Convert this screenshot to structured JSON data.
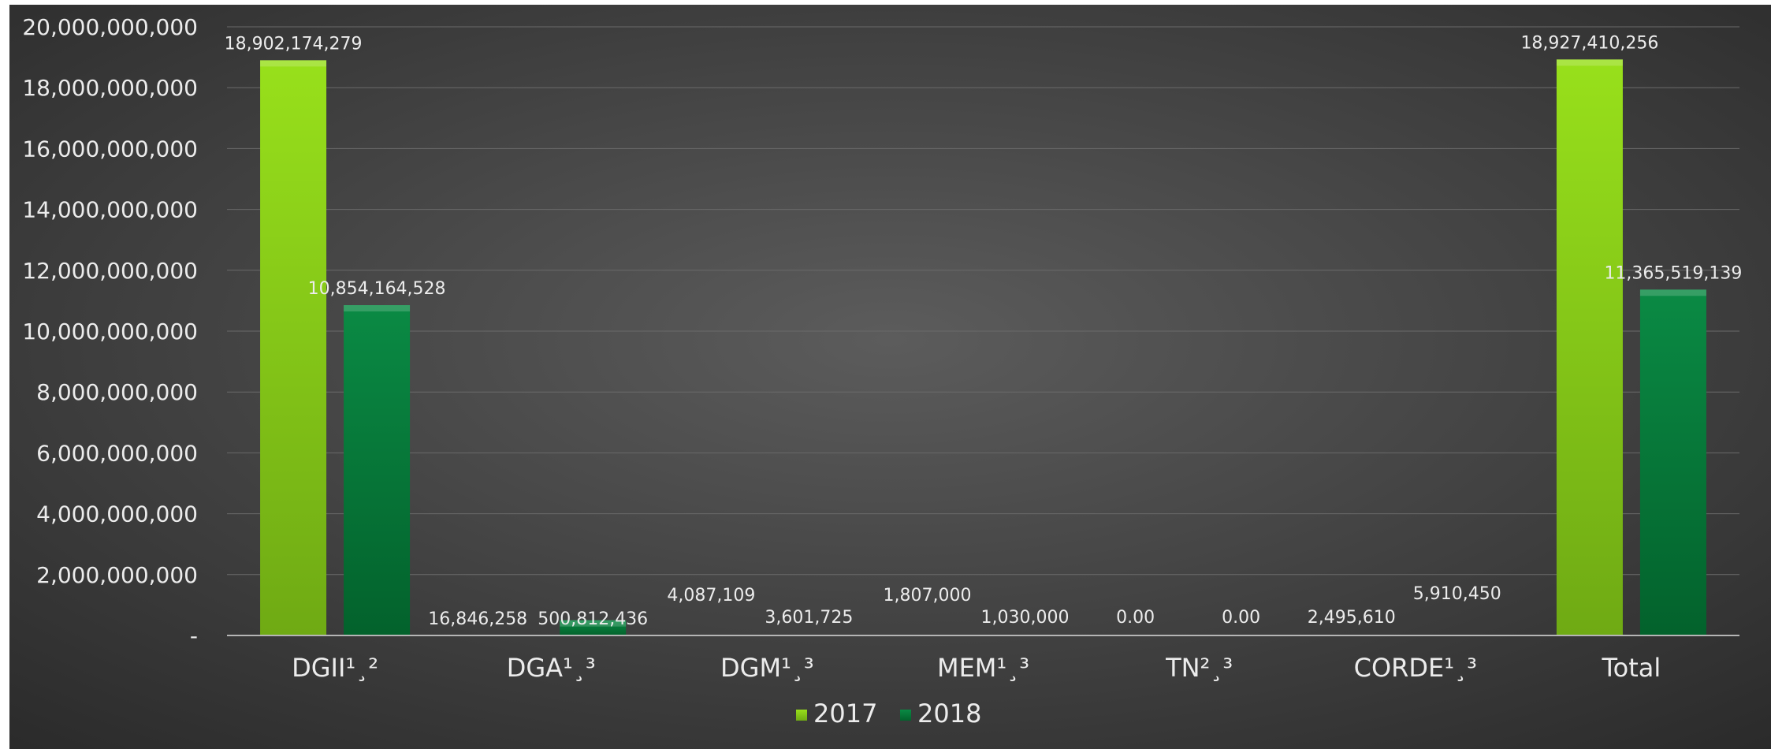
{
  "colors": {
    "series_2017": "#8fd11a",
    "series_2018": "#07803f",
    "text": "#ececec",
    "grid": "#6a6a6a",
    "axis": "#b5b5b5"
  },
  "chart_data": {
    "type": "bar",
    "categories": [
      "DGII¹¸²",
      "DGA¹¸³",
      "DGM¹¸³",
      "MEM¹¸³",
      "TN²¸³",
      "CORDE¹¸³",
      "Total"
    ],
    "series": [
      {
        "name": "2017",
        "values": [
          18902174279,
          16846258,
          4087109,
          1807000,
          0,
          2495610,
          18927410256
        ],
        "labels": [
          "18,902,174,279",
          "16,846,258",
          "4,087,109",
          "1,807,000",
          "0.00",
          "2,495,610",
          "18,927,410,256"
        ]
      },
      {
        "name": "2018",
        "values": [
          10854164528,
          500812436,
          3601725,
          1030000,
          0,
          5910450,
          11365519139
        ],
        "labels": [
          "10,854,164,528",
          "500,812,436",
          "3,601,725",
          "1,030,000",
          "0.00",
          "5,910,450",
          "11,365,519,139"
        ]
      }
    ],
    "y_ticks": [
      "-",
      "2,000,000,000",
      "4,000,000,000",
      "6,000,000,000",
      "8,000,000,000",
      "10,000,000,000",
      "12,000,000,000",
      "14,000,000,000",
      "16,000,000,000",
      "18,000,000,000",
      "20,000,000,000"
    ],
    "ylim": [
      0,
      20000000000
    ],
    "grid": true,
    "legend_position": "bottom"
  }
}
